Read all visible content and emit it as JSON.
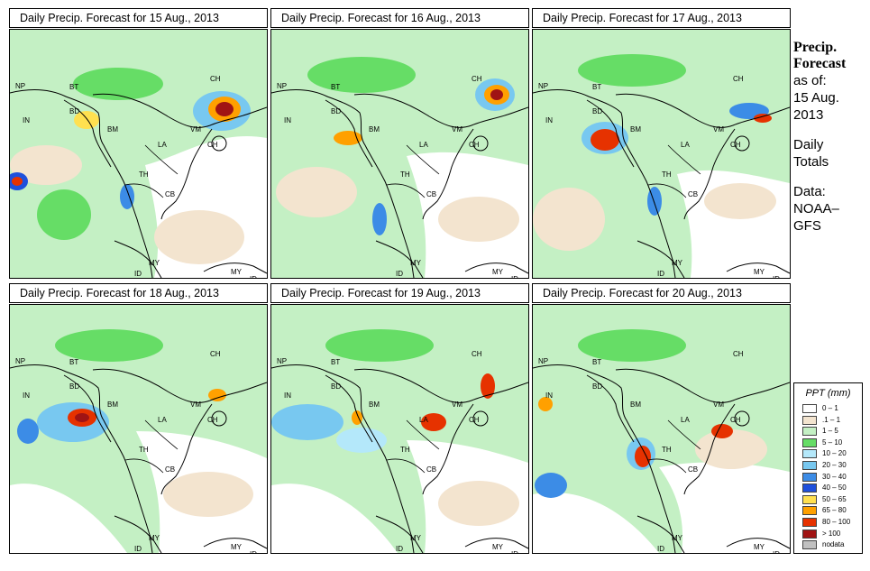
{
  "panels": [
    {
      "title": "Daily Precip. Forecast for  15 Aug., 2013"
    },
    {
      "title": "Daily Precip. Forecast for  16 Aug., 2013"
    },
    {
      "title": "Daily Precip. Forecast for  17 Aug., 2013"
    },
    {
      "title": "Daily Precip. Forecast for  18 Aug., 2013"
    },
    {
      "title": "Daily Precip. Forecast for  19 Aug., 2013"
    },
    {
      "title": "Daily Precip. Forecast for  20 Aug., 2013"
    }
  ],
  "country_labels": [
    "NP",
    "BT",
    "BD",
    "IN",
    "BM",
    "CH",
    "VM",
    "LA",
    "CH",
    "TH",
    "CB",
    "MY",
    "MY",
    "ID",
    "ID"
  ],
  "sidebar": {
    "heading_line1": "Precip.",
    "heading_line2": "Forecast",
    "asof_line1": "as of:",
    "asof_line2": "15 Aug.",
    "asof_line3": "2013",
    "totals_line1": "Daily",
    "totals_line2": "Totals",
    "source_line1": "Data:",
    "source_line2": "NOAA–",
    "source_line3": "GFS"
  },
  "legend": {
    "title": "PPT (mm)",
    "items": [
      {
        "label": "0 – 1",
        "color": "#ffffff"
      },
      {
        "label": ".1 – 1",
        "color": "#f3e4cf"
      },
      {
        "label": "1 – 5",
        "color": "#c4f0c4"
      },
      {
        "label": "5 – 10",
        "color": "#66dd66"
      },
      {
        "label": "10 – 20",
        "color": "#b4e8fa"
      },
      {
        "label": "20 – 30",
        "color": "#78c8f0"
      },
      {
        "label": "30 – 40",
        "color": "#3c8ce6"
      },
      {
        "label": "40 – 50",
        "color": "#1e50dc"
      },
      {
        "label": "50 – 65",
        "color": "#ffe050"
      },
      {
        "label": "65 – 80",
        "color": "#ffa000"
      },
      {
        "label": "80 – 100",
        "color": "#e63200"
      },
      {
        "label": "> 100",
        "color": "#a01414"
      },
      {
        "label": "nodata",
        "color": "#c0c0c0"
      }
    ]
  }
}
